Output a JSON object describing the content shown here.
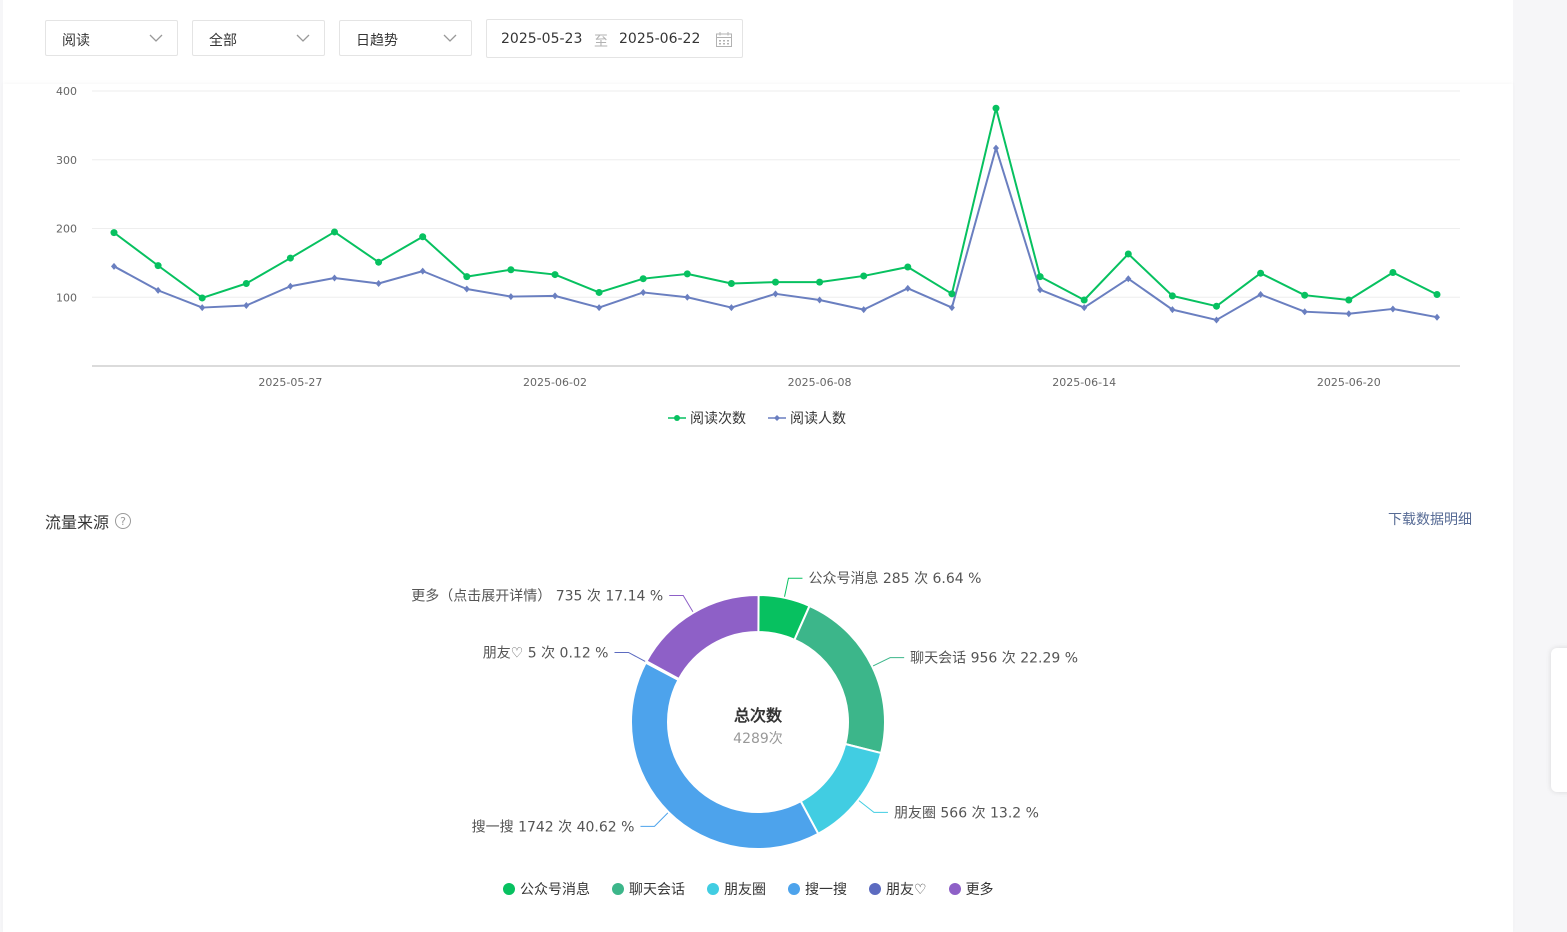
{
  "filters": {
    "metric": "阅读",
    "scope": "全部",
    "trend": "日趋势",
    "date_start": "2025-05-23",
    "date_sep": "至",
    "date_end": "2025-06-22"
  },
  "traffic": {
    "title": "流量来源",
    "help": "?",
    "download": "下载数据明细"
  },
  "colors": {
    "read_count": "#07c160",
    "read_users": "#6a7fc0",
    "wechat_msg": "#07c160",
    "chat": "#3cb68a",
    "moments": "#41cde2",
    "search": "#4da3ec",
    "friend": "#5c6bc0",
    "more": "#8e60c7"
  },
  "chart_data": [
    {
      "type": "line",
      "x": [
        "2025-05-23",
        "2025-05-24",
        "2025-05-25",
        "2025-05-26",
        "2025-05-27",
        "2025-05-28",
        "2025-05-29",
        "2025-05-30",
        "2025-05-31",
        "2025-06-01",
        "2025-06-02",
        "2025-06-03",
        "2025-06-04",
        "2025-06-05",
        "2025-06-06",
        "2025-06-07",
        "2025-06-08",
        "2025-06-09",
        "2025-06-10",
        "2025-06-11",
        "2025-06-12",
        "2025-06-13",
        "2025-06-14",
        "2025-06-15",
        "2025-06-16",
        "2025-06-17",
        "2025-06-18",
        "2025-06-19",
        "2025-06-20",
        "2025-06-21",
        "2025-06-22"
      ],
      "xticks": [
        "2025-05-27",
        "2025-06-02",
        "2025-06-08",
        "2025-06-14",
        "2025-06-20"
      ],
      "yticks": [
        100,
        200,
        300,
        400
      ],
      "ylim": [
        0,
        400
      ],
      "grid": true,
      "legend": "bottom-center",
      "series": [
        {
          "name": "阅读次数",
          "marker": "circle",
          "values": [
            194,
            146,
            99,
            120,
            157,
            195,
            151,
            188,
            130,
            140,
            133,
            107,
            127,
            134,
            120,
            122,
            122,
            131,
            144,
            105,
            375,
            130,
            96,
            163,
            102,
            87,
            135,
            103,
            96,
            136,
            104
          ]
        },
        {
          "name": "阅读人数",
          "marker": "diamond",
          "values": [
            145,
            110,
            85,
            88,
            116,
            128,
            120,
            138,
            112,
            101,
            102,
            85,
            107,
            100,
            85,
            105,
            96,
            82,
            113,
            85,
            317,
            111,
            85,
            127,
            82,
            67,
            104,
            79,
            76,
            83,
            71
          ]
        }
      ]
    },
    {
      "type": "pie",
      "center_title": "总次数",
      "center_value": "4289次",
      "total": 4289,
      "legend": "bottom-center",
      "slices": [
        {
          "name": "公众号消息",
          "value": 285,
          "label": "公众号消息 285 次 6.64 %"
        },
        {
          "name": "聊天会话",
          "value": 956,
          "label": "聊天会话 956 次 22.29 %"
        },
        {
          "name": "朋友圈",
          "value": 566,
          "label": "朋友圈 566 次 13.2 %"
        },
        {
          "name": "搜一搜",
          "value": 1742,
          "label": "搜一搜 1742 次 40.62 %"
        },
        {
          "name": "朋友♡",
          "value": 5,
          "label": "朋友♡ 5 次 0.12 %"
        },
        {
          "name": "更多",
          "value": 735,
          "label": "更多（点击展开详情） 735 次 17.14 %"
        }
      ]
    }
  ]
}
